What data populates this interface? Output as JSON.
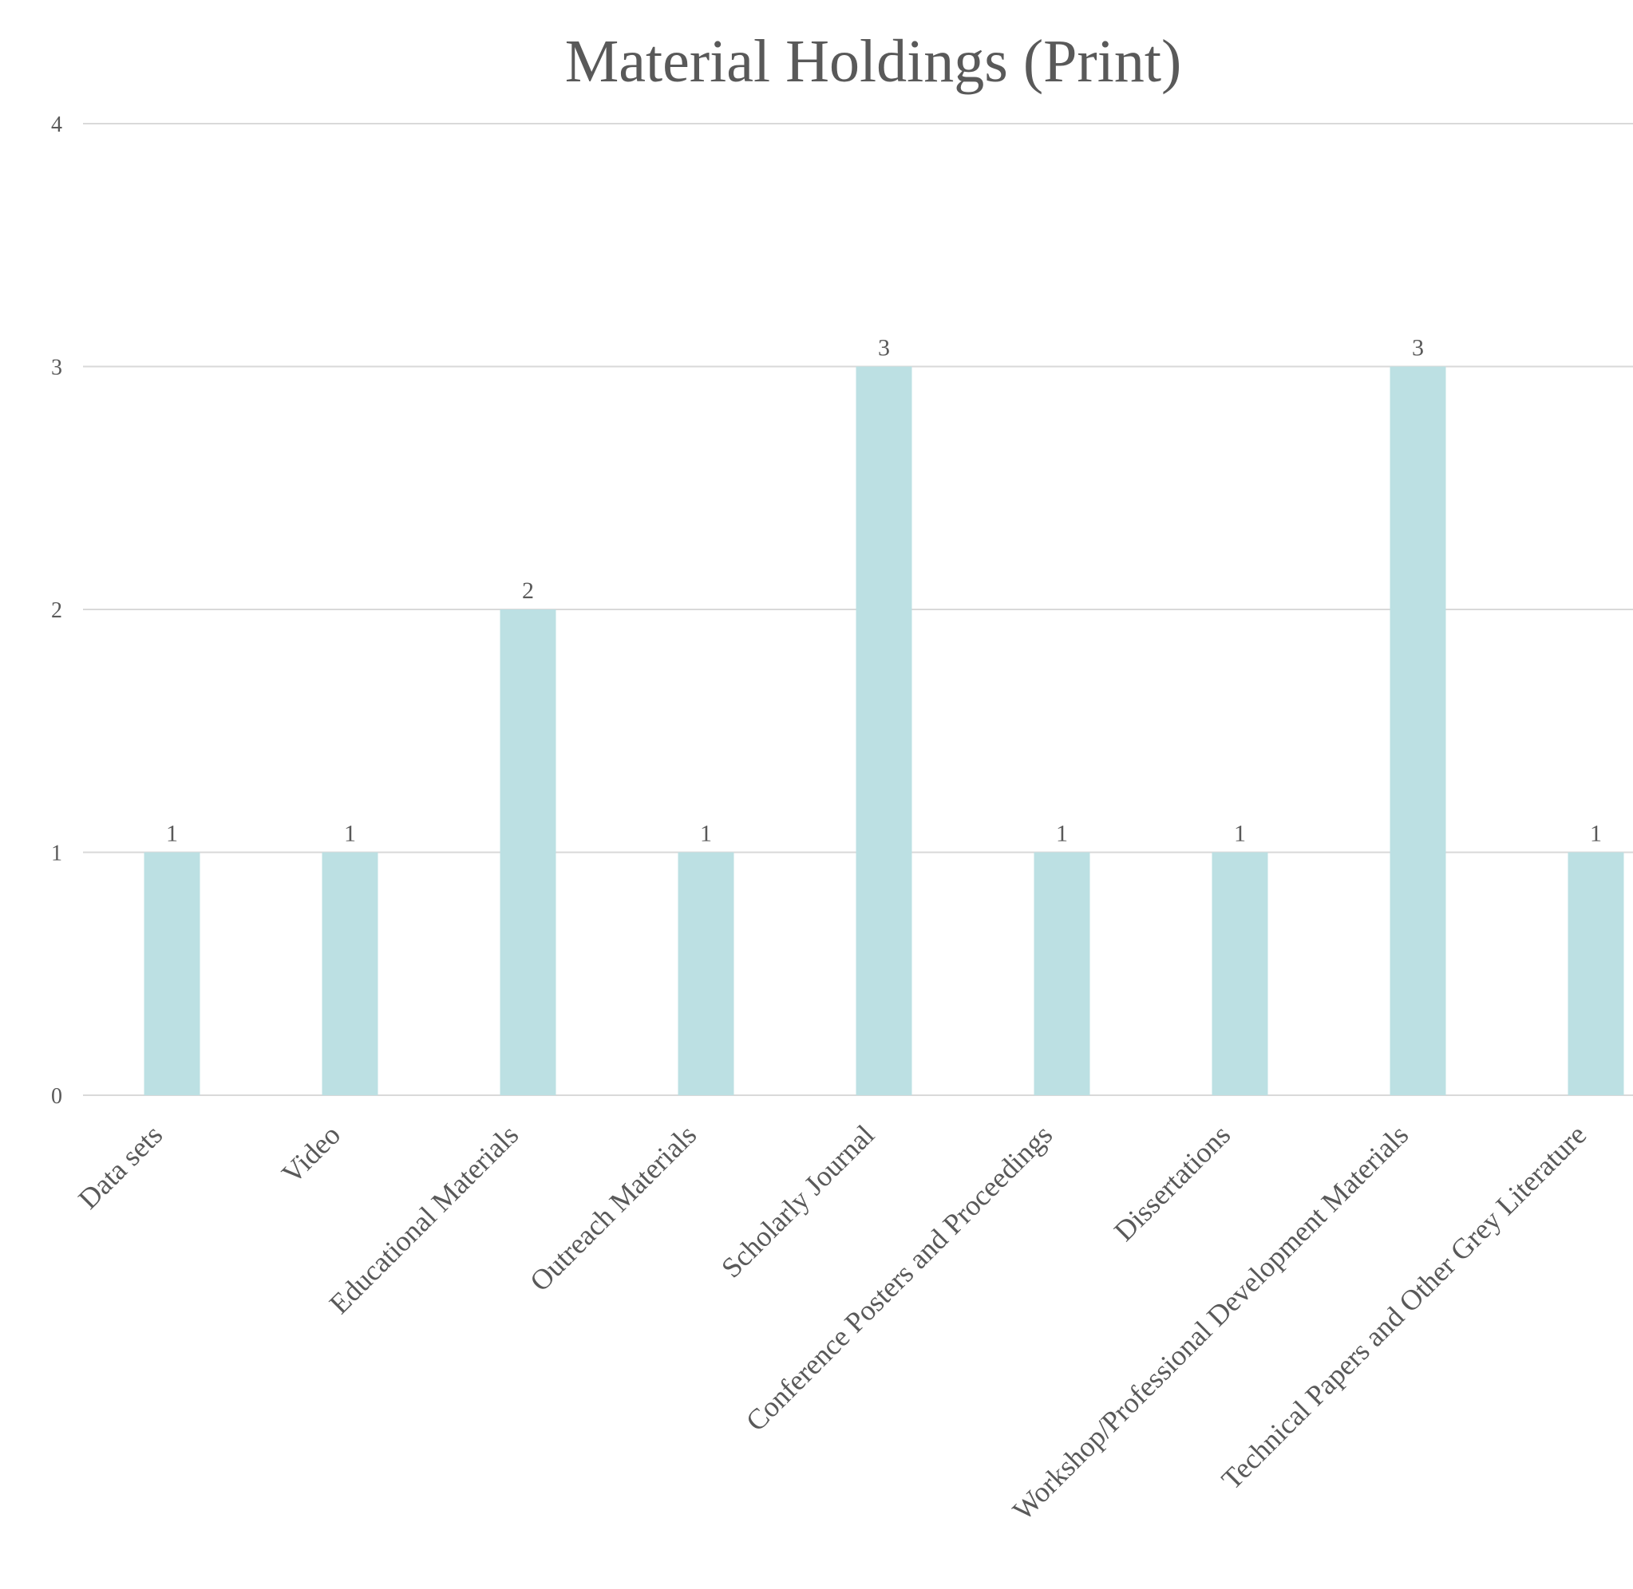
{
  "chart_data": {
    "type": "bar",
    "title": "Material Holdings (Print)",
    "categories": [
      "Data sets",
      "Video",
      "Educational Materials",
      "Outreach Materials",
      "Scholarly Journal",
      "Conference Posters and Proceedings",
      "Dissertations",
      "Workshop/Professional Development Materials",
      "Technical Papers and Other Grey Literature"
    ],
    "values": [
      1,
      1,
      2,
      1,
      3,
      1,
      1,
      3,
      1
    ],
    "color": "#bce0e3",
    "ylim": [
      0,
      4
    ],
    "yticks": [
      0,
      1,
      2,
      3,
      4
    ],
    "grid": true
  }
}
